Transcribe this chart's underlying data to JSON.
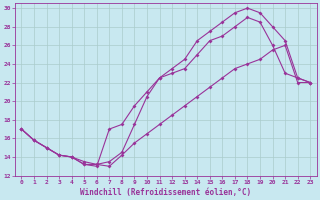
{
  "xlabel": "Windchill (Refroidissement éolien,°C)",
  "bg_color": "#c8e8f0",
  "line_color": "#993399",
  "grid_color": "#aacccc",
  "xlim": [
    -0.5,
    23.5
  ],
  "ylim": [
    12,
    30.5
  ],
  "xticks": [
    0,
    1,
    2,
    3,
    4,
    5,
    6,
    7,
    8,
    9,
    10,
    11,
    12,
    13,
    14,
    15,
    16,
    17,
    18,
    19,
    20,
    21,
    22,
    23
  ],
  "yticks": [
    12,
    14,
    16,
    18,
    20,
    22,
    24,
    26,
    28,
    30
  ],
  "line1_x": [
    0,
    1,
    2,
    3,
    4,
    5,
    6,
    7,
    8,
    9,
    10,
    11,
    12,
    13,
    14,
    15,
    16,
    17,
    18,
    19,
    20,
    21,
    22,
    23
  ],
  "line1_y": [
    17.0,
    15.8,
    15.0,
    14.2,
    14.0,
    13.5,
    13.2,
    13.0,
    14.2,
    15.5,
    16.5,
    17.5,
    18.5,
    19.5,
    20.5,
    21.5,
    22.5,
    23.5,
    24.0,
    24.5,
    25.5,
    26.0,
    22.0,
    22.0
  ],
  "line2_x": [
    0,
    1,
    2,
    3,
    4,
    5,
    6,
    7,
    8,
    9,
    10,
    11,
    12,
    13,
    14,
    15,
    16,
    17,
    18,
    19,
    20,
    21,
    22,
    23
  ],
  "line2_y": [
    17.0,
    15.8,
    15.0,
    14.2,
    14.0,
    13.2,
    13.0,
    17.0,
    17.5,
    19.5,
    21.0,
    22.5,
    23.0,
    23.5,
    25.0,
    26.5,
    27.0,
    28.0,
    29.0,
    28.5,
    26.0,
    23.0,
    22.5,
    22.0
  ],
  "line3_x": [
    0,
    1,
    2,
    3,
    4,
    5,
    6,
    7,
    8,
    9,
    10,
    11,
    12,
    13,
    14,
    15,
    16,
    17,
    18,
    19,
    20,
    21,
    22,
    23
  ],
  "line3_y": [
    17.0,
    15.8,
    15.0,
    14.2,
    14.0,
    13.2,
    13.2,
    13.5,
    14.5,
    17.5,
    20.5,
    22.5,
    23.5,
    24.5,
    26.5,
    27.5,
    28.5,
    29.5,
    30.0,
    29.5,
    28.0,
    26.5,
    22.5,
    22.0
  ],
  "marker": "D",
  "markersize": 2.0,
  "linewidth": 0.8
}
